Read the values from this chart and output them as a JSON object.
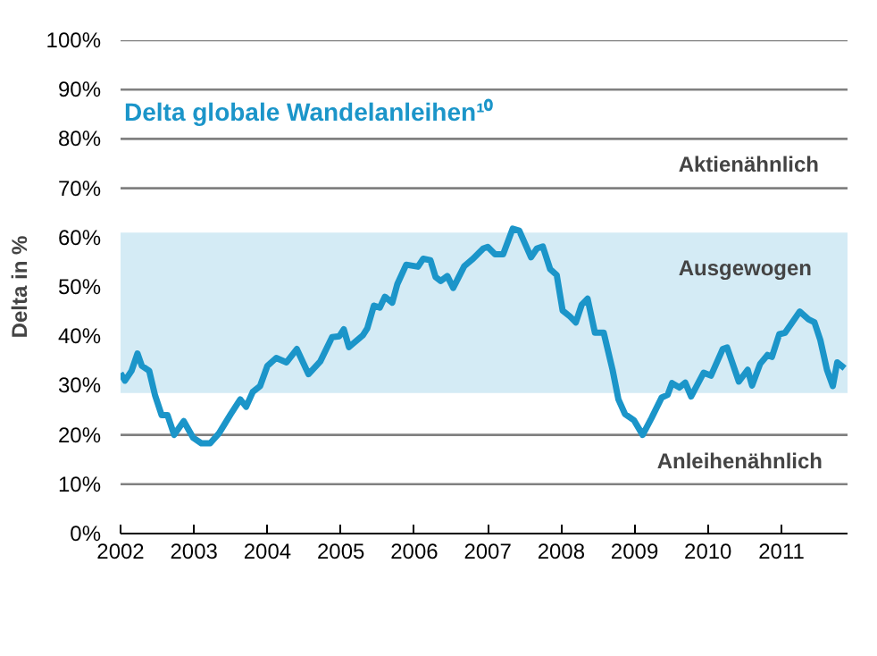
{
  "chart_data": {
    "type": "line",
    "title": "Delta globale Wandelanleihen¹⁰",
    "ylabel": "Delta in %",
    "x": [
      2002.0,
      2002.06,
      2002.15,
      2002.23,
      2002.29,
      2002.39,
      2002.47,
      2002.56,
      2002.64,
      2002.73,
      2002.86,
      2002.99,
      2003.1,
      2003.22,
      2003.34,
      2003.5,
      2003.63,
      2003.71,
      2003.8,
      2003.9,
      2004.0,
      2004.12,
      2004.26,
      2004.4,
      2004.56,
      2004.72,
      2004.88,
      2004.98,
      2005.04,
      2005.11,
      2005.3,
      2005.36,
      2005.45,
      2005.53,
      2005.6,
      2005.7,
      2005.77,
      2005.89,
      2006.05,
      2006.12,
      2006.22,
      2006.29,
      2006.36,
      2006.45,
      2006.53,
      2006.68,
      2006.8,
      2006.94,
      2007.0,
      2007.1,
      2007.21,
      2007.34,
      2007.43,
      2007.59,
      2007.67,
      2007.75,
      2007.85,
      2007.94,
      2008.02,
      2008.12,
      2008.2,
      2008.28,
      2008.36,
      2008.46,
      2008.58,
      2008.7,
      2008.78,
      2008.87,
      2008.99,
      2009.11,
      2009.23,
      2009.37,
      2009.45,
      2009.51,
      2009.61,
      2009.69,
      2009.77,
      2009.94,
      2010.04,
      2010.2,
      2010.26,
      2010.42,
      2010.54,
      2010.6,
      2010.71,
      2010.81,
      2010.87,
      2010.97,
      2011.05,
      2011.25,
      2011.37,
      2011.45,
      2011.53,
      2011.62,
      2011.7,
      2011.76,
      2011.86
    ],
    "series": [
      {
        "color": "#1b95c9",
        "values": [
          32.5,
          31,
          33,
          36.5,
          34,
          33,
          28,
          24,
          24,
          20,
          22.8,
          19.4,
          18.3,
          18.3,
          20.3,
          24.2,
          27.2,
          25.7,
          28.7,
          29.9,
          34,
          35.6,
          34.7,
          37.4,
          32.3,
          34.9,
          39.8,
          40,
          41.4,
          37.8,
          40.2,
          41.6,
          46.2,
          45.8,
          48,
          46.8,
          50.6,
          54.5,
          54.1,
          55.7,
          55.4,
          52,
          51.2,
          52.2,
          49.8,
          54.2,
          55.7,
          57.8,
          58.1,
          56.6,
          56.6,
          61.8,
          61.4,
          56,
          57.8,
          58.2,
          53.6,
          52.4,
          45.2,
          44,
          42.8,
          46.4,
          47.6,
          40.7,
          40.7,
          33.2,
          27.2,
          24.2,
          23,
          20,
          23.4,
          27.6,
          28.1,
          30.5,
          29.6,
          30.6,
          27.8,
          32.6,
          32,
          37.4,
          37.7,
          30.8,
          33.2,
          30,
          34.4,
          36.2,
          35.8,
          40.4,
          40.7,
          45,
          43.4,
          42.8,
          39.2,
          33.2,
          29.9,
          34.7,
          33.5
        ]
      }
    ],
    "xlim": [
      2002,
      2011.9
    ],
    "xticks": [
      2002,
      2003,
      2004,
      2005,
      2006,
      2007,
      2008,
      2009,
      2010,
      2011
    ],
    "ylim": [
      0,
      100
    ],
    "yticks": [
      {
        "value": 0,
        "label": "0%"
      },
      {
        "value": 10,
        "label": "10%"
      },
      {
        "value": 20,
        "label": "20%"
      },
      {
        "value": 30,
        "label": "30%"
      },
      {
        "value": 40,
        "label": "40%"
      },
      {
        "value": 50,
        "label": "50%"
      },
      {
        "value": 60,
        "label": "60%"
      },
      {
        "value": 70,
        "label": "70%"
      },
      {
        "value": 80,
        "label": "80%"
      },
      {
        "value": 90,
        "label": "90%"
      },
      {
        "value": 100,
        "label": "100%"
      }
    ],
    "bands": [
      {
        "axis": "y",
        "from": 28.5,
        "to": 61,
        "label": "Ausgewogen",
        "color": "#d4ebf5"
      }
    ],
    "annotations": [
      "Aktienähnlich",
      "Anleihenähnlich"
    ],
    "grid": "y",
    "marker": "none",
    "line_style": "solid"
  }
}
